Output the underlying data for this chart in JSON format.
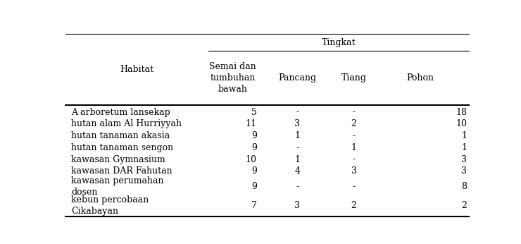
{
  "title": "Tingkat",
  "habitat_label": "Habitat",
  "sub_headers": [
    "Semai dan\ntumbuhan\nbawah",
    "Pancang",
    "Tiang",
    "Pohon"
  ],
  "rows": [
    [
      "A arboretum lansekap",
      "5",
      "-",
      "-",
      "18"
    ],
    [
      "hutan alam Al Hurriyyah",
      "11",
      "3",
      "2",
      "10"
    ],
    [
      "hutan tanaman akasia",
      "9",
      "1",
      "-",
      "1"
    ],
    [
      "hutan tanaman sengon",
      "9",
      "-",
      "1",
      "1"
    ],
    [
      "kawasan Gymnasium",
      "10",
      "1",
      "-",
      "3"
    ],
    [
      "kawasan DAR Fahutan",
      "9",
      "4",
      "3",
      "3"
    ],
    [
      "kawasan perumahan\ndosen",
      "9",
      "-",
      "-",
      "8"
    ],
    [
      "kebun percobaan\nCikabayan",
      "7",
      "3",
      "2",
      "2"
    ]
  ],
  "col_alignments": [
    "left",
    "right",
    "center",
    "center",
    "right"
  ],
  "bg_color": "#ffffff",
  "text_color": "#000000",
  "fontsize": 9.0,
  "font_family": "DejaVu Serif"
}
